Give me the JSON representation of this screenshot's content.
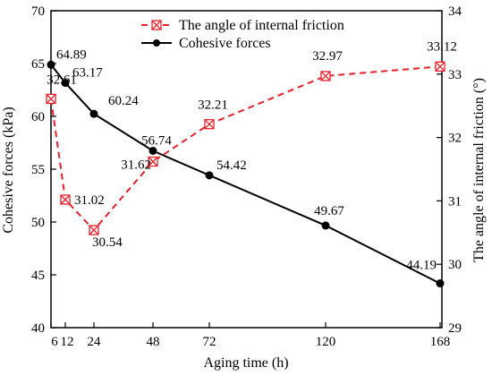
{
  "chart_data": {
    "type": "line",
    "xlabel": "Aging time (h)",
    "ylabel_left": "Cohesive forces (kPa)",
    "ylabel_right": "The angle of internal friction (°)",
    "x_ticks": [
      "6",
      "12",
      "24",
      "48",
      "72",
      "120",
      "168"
    ],
    "ylim_left": [
      40,
      70
    ],
    "yticks_left": [
      "40",
      "45",
      "50",
      "55",
      "60",
      "65",
      "70"
    ],
    "ylim_right": [
      29,
      34
    ],
    "yticks_right": [
      "29",
      "30",
      "31",
      "32",
      "33",
      "34"
    ],
    "legend_position": "top-center",
    "grid": false,
    "series": [
      {
        "name": "The angle of internal friction",
        "axis": "right",
        "style": "dashed",
        "color": "#e8202a",
        "marker": "x-square",
        "x": [
          6,
          12,
          24,
          48,
          72,
          120,
          168
        ],
        "values": [
          32.61,
          31.02,
          30.54,
          31.62,
          32.21,
          32.97,
          33.12
        ],
        "labels": [
          "32.61",
          "31.02",
          "30.54",
          "31.62",
          "32.21",
          "32.97",
          "33.12"
        ]
      },
      {
        "name": "Cohesive forces",
        "axis": "left",
        "style": "solid",
        "color": "#000000",
        "marker": "circle",
        "x": [
          6,
          12,
          24,
          48,
          72,
          120,
          168
        ],
        "values": [
          64.89,
          63.17,
          60.24,
          56.74,
          54.42,
          49.67,
          44.19
        ],
        "labels": [
          "64.89",
          "63.17",
          "60.24",
          "56.74",
          "54.42",
          "49.67",
          "44.19"
        ]
      }
    ]
  }
}
